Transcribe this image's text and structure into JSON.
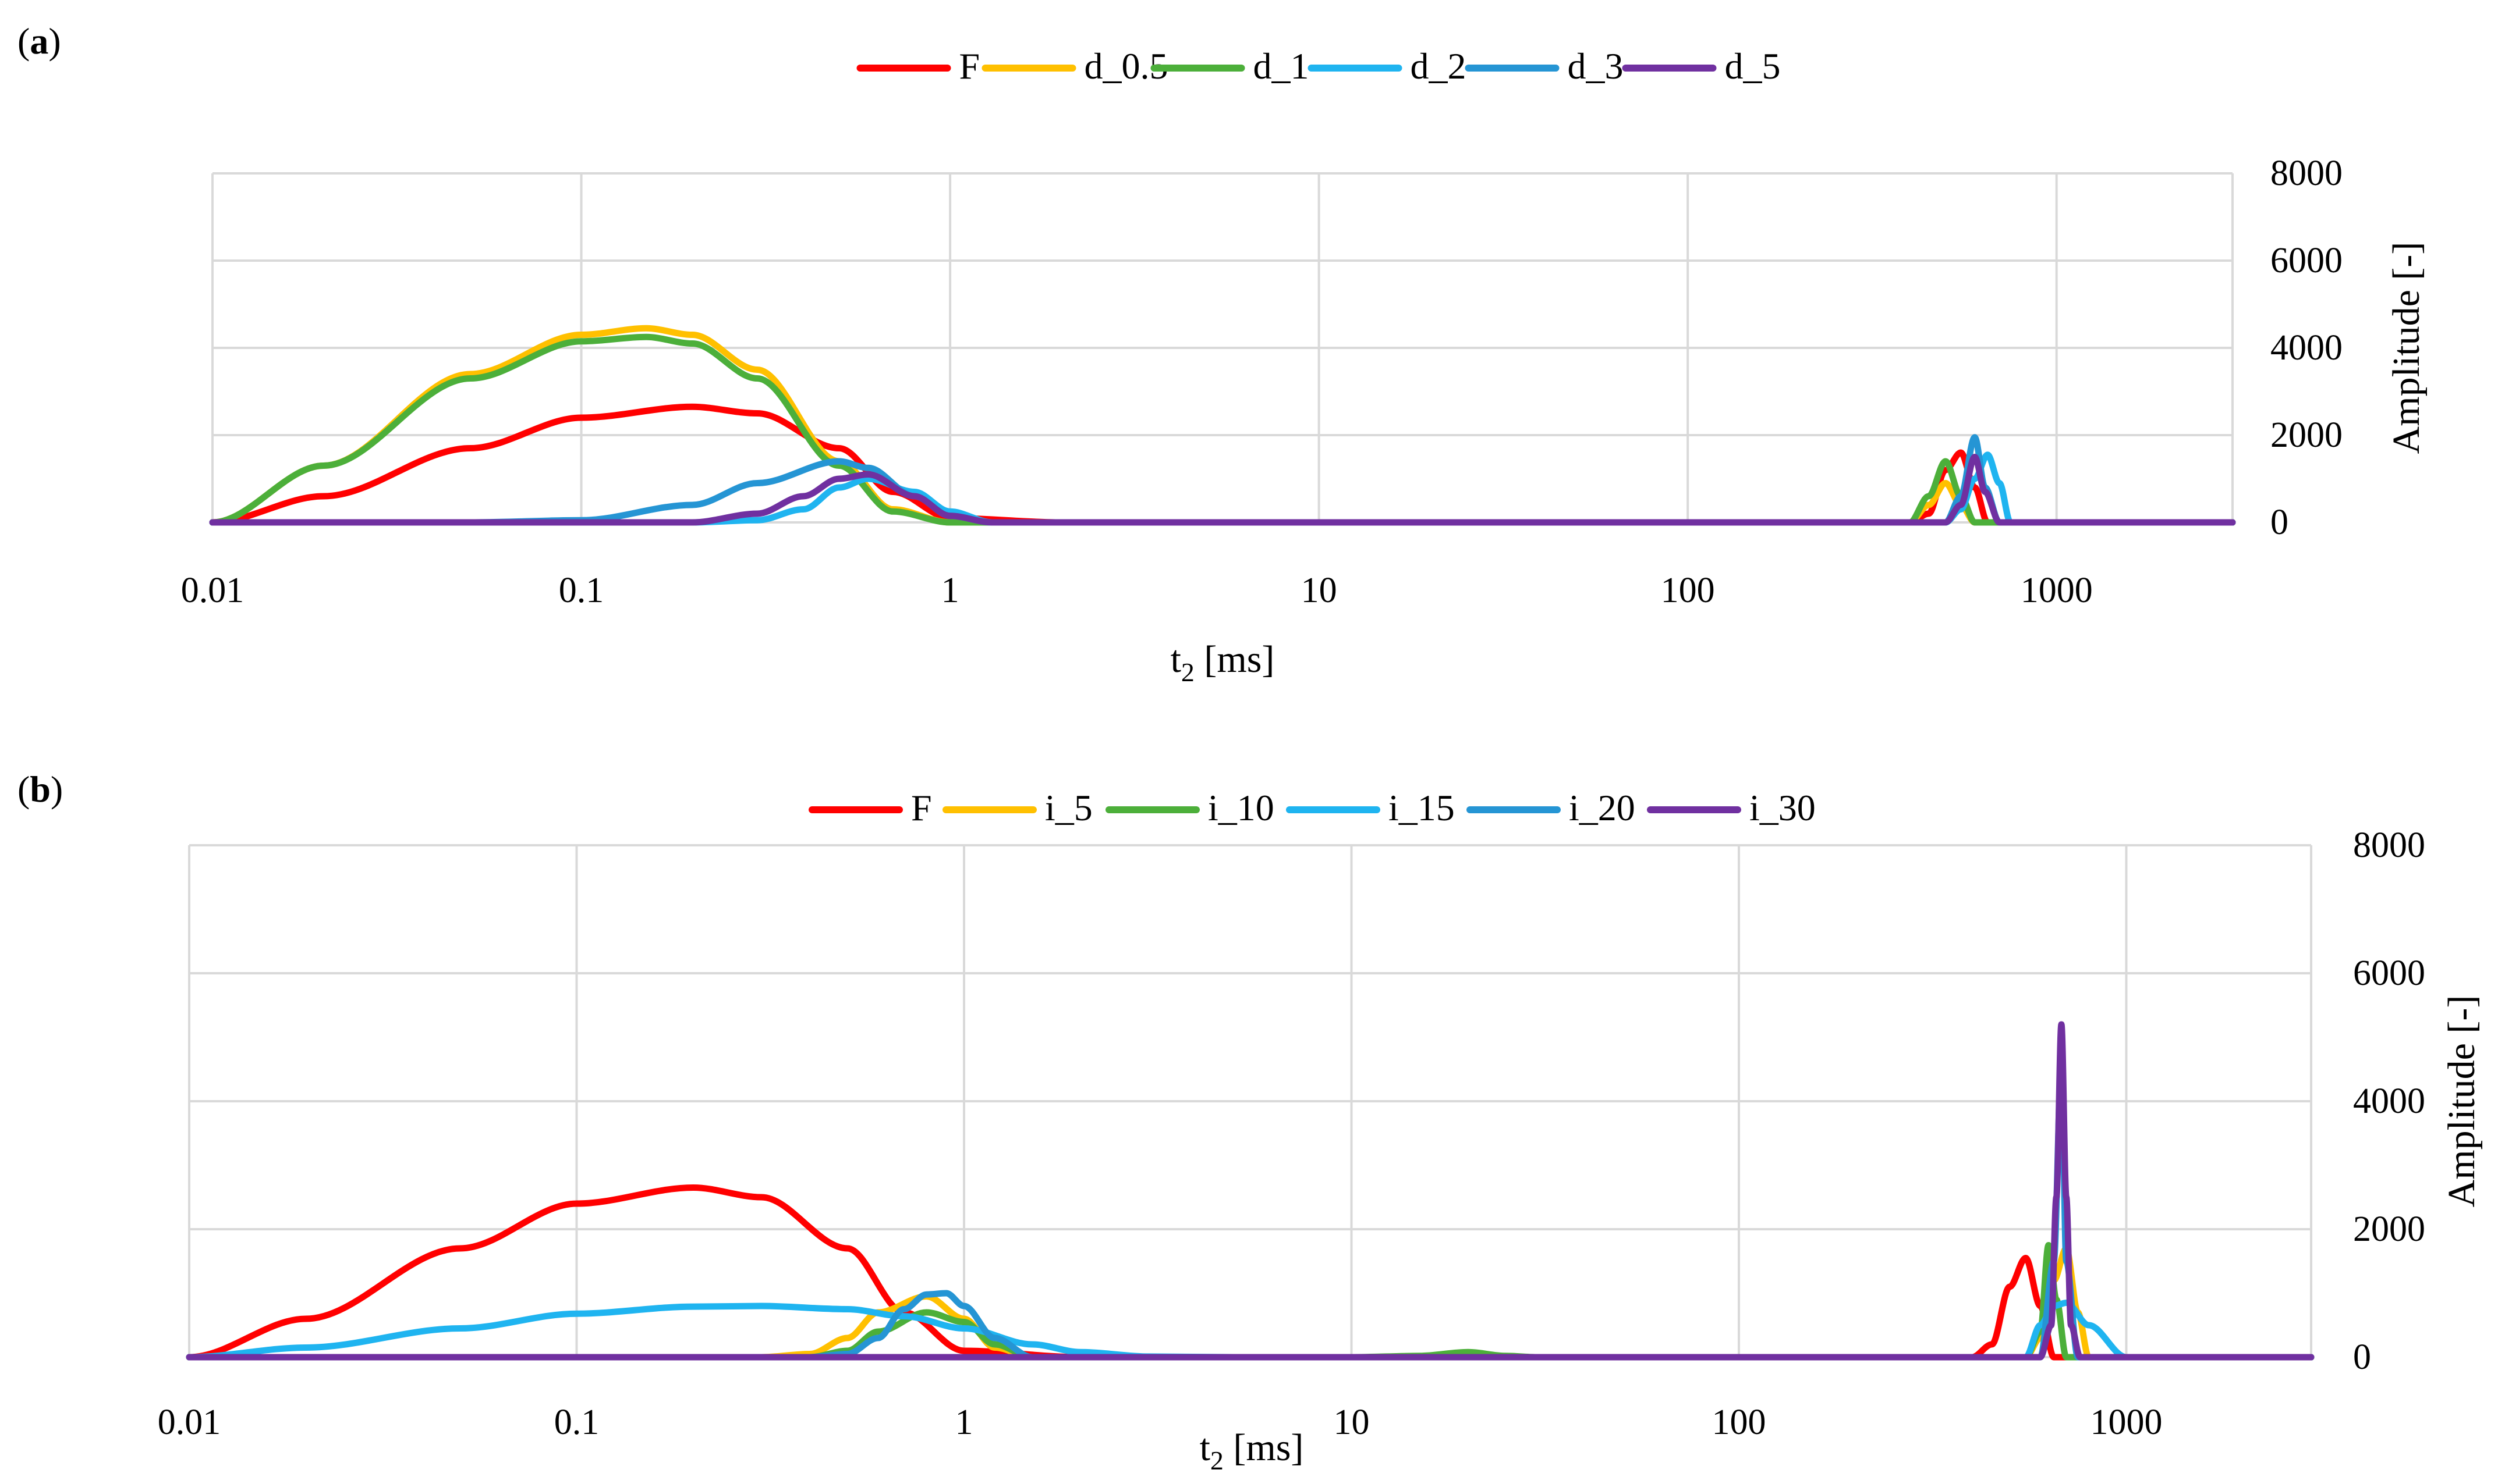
{
  "chart_data": [
    {
      "panel_label": "(a)",
      "type": "line",
      "xscale": "log",
      "xlabel": "t₂ [ms]",
      "ylabel": "Amplitude [-]",
      "xlim": [
        0.01,
        3000
      ],
      "ylim": [
        0,
        8000
      ],
      "xticks": [
        "0.01",
        "0.1",
        "1",
        "10",
        "100",
        "1000"
      ],
      "yticks": [
        "0",
        "2000",
        "4000",
        "6000",
        "8000"
      ],
      "legend_position": "top-center",
      "grid": true,
      "series": [
        {
          "name": "F",
          "color": "#ff0000",
          "x": [
            0.01,
            0.02,
            0.05,
            0.1,
            0.2,
            0.3,
            0.5,
            0.7,
            1,
            2,
            100,
            400,
            450,
            500,
            550,
            600,
            650,
            3000
          ],
          "y": [
            0,
            600,
            1700,
            2400,
            2650,
            2500,
            1700,
            700,
            100,
            0,
            0,
            0,
            200,
            1200,
            1600,
            800,
            0,
            0
          ]
        },
        {
          "name": "d_0.5",
          "color": "#ffc000",
          "x": [
            0.01,
            0.02,
            0.05,
            0.1,
            0.15,
            0.2,
            0.3,
            0.5,
            0.7,
            1,
            2,
            100,
            400,
            450,
            500,
            550,
            600,
            3000
          ],
          "y": [
            0,
            1300,
            3400,
            4300,
            4450,
            4300,
            3500,
            1400,
            300,
            0,
            0,
            0,
            0,
            400,
            900,
            400,
            0,
            0
          ]
        },
        {
          "name": "d_1",
          "color": "#4caf3a",
          "x": [
            0.01,
            0.02,
            0.05,
            0.1,
            0.15,
            0.2,
            0.3,
            0.5,
            0.7,
            1,
            2,
            100,
            400,
            450,
            500,
            550,
            600,
            3000
          ],
          "y": [
            0,
            1300,
            3300,
            4150,
            4250,
            4100,
            3300,
            1300,
            250,
            0,
            0,
            0,
            0,
            600,
            1400,
            600,
            0,
            0
          ]
        },
        {
          "name": "d_2",
          "color": "#1fb4f0",
          "x": [
            0.01,
            0.2,
            0.3,
            0.4,
            0.5,
            0.6,
            0.8,
            1,
            1.3,
            2,
            100,
            500,
            550,
            600,
            650,
            700,
            750,
            3000
          ],
          "y": [
            0,
            0,
            50,
            300,
            800,
            1000,
            700,
            250,
            0,
            0,
            0,
            0,
            300,
            1000,
            1550,
            900,
            0,
            0
          ]
        },
        {
          "name": "d_3",
          "color": "#2595d4",
          "x": [
            0.01,
            0.05,
            0.1,
            0.2,
            0.3,
            0.5,
            0.6,
            0.8,
            1,
            1.3,
            2,
            100,
            500,
            550,
            600,
            640,
            700,
            3000
          ],
          "y": [
            0,
            0,
            50,
            400,
            900,
            1400,
            1250,
            600,
            150,
            0,
            0,
            0,
            0,
            600,
            1950,
            800,
            0,
            0
          ]
        },
        {
          "name": "d_5",
          "color": "#7030a0",
          "x": [
            0.01,
            0.2,
            0.3,
            0.4,
            0.5,
            0.6,
            0.8,
            1,
            1.3,
            2,
            100,
            500,
            550,
            600,
            640,
            700,
            3000
          ],
          "y": [
            0,
            0,
            200,
            600,
            1000,
            1100,
            600,
            150,
            0,
            0,
            0,
            0,
            400,
            1500,
            700,
            0,
            0
          ]
        }
      ]
    },
    {
      "panel_label": "(b)",
      "type": "line",
      "xscale": "log",
      "xlabel": "t₂ [ms]",
      "ylabel": "Amplitude [-]",
      "xlim": [
        0.01,
        3000
      ],
      "ylim": [
        0,
        8000
      ],
      "xticks": [
        "0.01",
        "0.1",
        "1",
        "10",
        "100",
        "1000"
      ],
      "yticks": [
        "0",
        "2000",
        "4000",
        "6000",
        "8000"
      ],
      "legend_position": "top-center",
      "grid": true,
      "series": [
        {
          "name": "F",
          "color": "#ff0000",
          "x": [
            0.01,
            0.02,
            0.05,
            0.1,
            0.2,
            0.3,
            0.5,
            0.7,
            1,
            2,
            100,
            400,
            450,
            500,
            550,
            600,
            650,
            3000
          ],
          "y": [
            0,
            600,
            1700,
            2400,
            2650,
            2500,
            1700,
            700,
            100,
            0,
            0,
            0,
            200,
            1100,
            1550,
            800,
            0,
            0
          ]
        },
        {
          "name": "i_5",
          "color": "#ffc000",
          "x": [
            0.01,
            0.3,
            0.4,
            0.5,
            0.6,
            0.8,
            1,
            1.2,
            1.5,
            2,
            100,
            550,
            600,
            650,
            700,
            750,
            800,
            3000
          ],
          "y": [
            0,
            0,
            50,
            300,
            700,
            950,
            600,
            150,
            0,
            0,
            0,
            0,
            300,
            1200,
            1700,
            700,
            0,
            0
          ]
        },
        {
          "name": "i_10",
          "color": "#4caf3a",
          "x": [
            0.01,
            0.4,
            0.5,
            0.6,
            0.8,
            1,
            1.2,
            1.5,
            10,
            15,
            20,
            25,
            30,
            100,
            550,
            600,
            630,
            660,
            700,
            3000
          ],
          "y": [
            0,
            0,
            100,
            400,
            700,
            550,
            200,
            0,
            0,
            20,
            80,
            20,
            0,
            0,
            0,
            400,
            1750,
            900,
            0,
            0
          ]
        },
        {
          "name": "i_15",
          "color": "#1fb4f0",
          "x": [
            0.01,
            0.02,
            0.05,
            0.1,
            0.2,
            0.3,
            0.5,
            0.7,
            1,
            1.5,
            2,
            3,
            5,
            100,
            550,
            600,
            650,
            700,
            800,
            1000,
            3000
          ],
          "y": [
            0,
            150,
            450,
            680,
            790,
            800,
            750,
            640,
            450,
            200,
            80,
            10,
            0,
            0,
            0,
            500,
            800,
            850,
            500,
            0,
            0
          ]
        },
        {
          "name": "i_20",
          "color": "#2595d4",
          "x": [
            0.01,
            0.4,
            0.5,
            0.6,
            0.7,
            0.8,
            0.9,
            1,
            1.2,
            1.5,
            2,
            100,
            600,
            650,
            680,
            700,
            750,
            3000
          ],
          "y": [
            0,
            0,
            50,
            300,
            750,
            980,
            1000,
            800,
            300,
            0,
            0,
            0,
            0,
            1500,
            4600,
            1500,
            0,
            0
          ]
        },
        {
          "name": "i_30",
          "color": "#7030a0",
          "x": [
            0.01,
            20,
            600,
            640,
            660,
            680,
            700,
            720,
            760,
            3000
          ],
          "y": [
            0,
            0,
            0,
            500,
            2500,
            5200,
            2500,
            500,
            0,
            0
          ]
        }
      ]
    }
  ]
}
